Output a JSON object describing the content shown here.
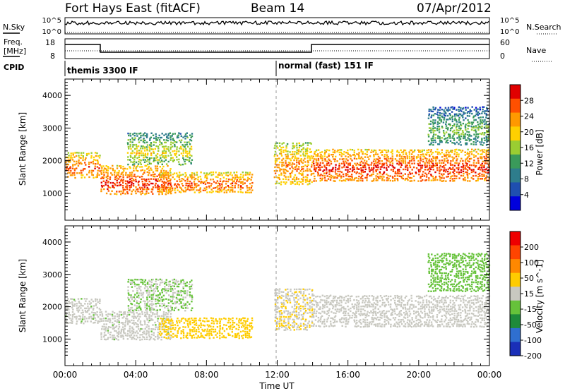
{
  "header": {
    "station": "Fort Hays East (fitACF)",
    "beam": "Beam 14",
    "date": "07/Apr/2012"
  },
  "top_panels": {
    "nsky_label": "N.Sky",
    "nsky_ticks": [
      "10^5",
      "10^0"
    ],
    "nsearch_label": "N.Search",
    "nsearch_ticks": [
      "10^5",
      "10^0"
    ],
    "freq_label_1": "Freq.",
    "freq_label_2": "[MHz]",
    "freq_ticks": [
      "18",
      "8"
    ],
    "nave_label": "Nave",
    "nave_ticks": [
      "60",
      "0"
    ],
    "cpid_label": "CPID",
    "modes": [
      {
        "name": "themis 3300 IF",
        "start_hour": 0,
        "end_hour": 12
      },
      {
        "name": "normal (fast) 151 IF",
        "start_hour": 12,
        "end_hour": 24
      }
    ],
    "freq_segments": [
      {
        "start_hour": 0,
        "end_hour": 2,
        "value": "high"
      },
      {
        "start_hour": 2,
        "end_hour": 14,
        "value": "low"
      },
      {
        "start_hour": 14,
        "end_hour": 24,
        "value": "high"
      }
    ]
  },
  "power_panel": {
    "ylabel": "Slant Range [km]",
    "yticks": [
      "4000",
      "3000",
      "2000",
      "1000"
    ],
    "colorbar_label": "Power [dB]",
    "colorbar_ticks": [
      "28",
      "24",
      "20",
      "16",
      "12",
      "8",
      "4"
    ],
    "colors": [
      "#0000dd",
      "#1f4fb0",
      "#2e7d8c",
      "#3a9a5a",
      "#9acd32",
      "#ffd000",
      "#ff9900",
      "#ff5000",
      "#e00000"
    ]
  },
  "velocity_panel": {
    "ylabel": "Slant Range [km]",
    "yticks": [
      "4000",
      "3000",
      "2000",
      "1000"
    ],
    "colorbar_label": "Velocity [m s^-1]",
    "colorbar_ticks": [
      "200",
      "100",
      "50",
      "15",
      "-15",
      "-50",
      "-100",
      "-200"
    ],
    "colors": [
      "#1a2fb8",
      "#2f6fd0",
      "#1e8a3a",
      "#66c23a",
      "#c8c8c0",
      "#ffcc00",
      "#ff8800",
      "#ff4400",
      "#ee0000"
    ]
  },
  "x_axis": {
    "label": "Time UT",
    "ticks": [
      "00:00",
      "04:00",
      "08:00",
      "12:00",
      "16:00",
      "20:00",
      "00:00"
    ]
  },
  "chart_data": {
    "type": "heatmap",
    "title": "Fort Hays East (fitACF)",
    "xlabel": "Time UT",
    "ylabel": "Slant Range [km]",
    "xlim": [
      0,
      24
    ],
    "ylim": [
      180,
      4500
    ],
    "series": [
      {
        "name": "Power [dB]",
        "clim": [
          0,
          32
        ]
      },
      {
        "name": "Velocity [m s^-1]",
        "clim": [
          -250,
          250
        ]
      }
    ],
    "echo_regions": [
      {
        "t0": 0.0,
        "t1": 2.0,
        "r0": 1500,
        "r1": 2300,
        "power": 22,
        "velocity": -10
      },
      {
        "t0": 2.0,
        "t1": 6.0,
        "r0": 1000,
        "r1": 1900,
        "power": 24,
        "velocity": -10
      },
      {
        "t0": 3.5,
        "t1": 7.2,
        "r0": 1900,
        "r1": 2900,
        "power": 14,
        "velocity": -30
      },
      {
        "t0": 5.3,
        "t1": 10.6,
        "r0": 1050,
        "r1": 1700,
        "power": 22,
        "velocity": 60
      },
      {
        "t0": 11.8,
        "t1": 14.0,
        "r0": 1300,
        "r1": 2600,
        "power": 20,
        "velocity": 20
      },
      {
        "t0": 14.0,
        "t1": 24.0,
        "r0": 1400,
        "r1": 2400,
        "power": 24,
        "velocity": 5
      },
      {
        "t0": 20.5,
        "t1": 24.0,
        "r0": 2500,
        "r1": 3700,
        "power": 10,
        "velocity": -60
      }
    ]
  }
}
